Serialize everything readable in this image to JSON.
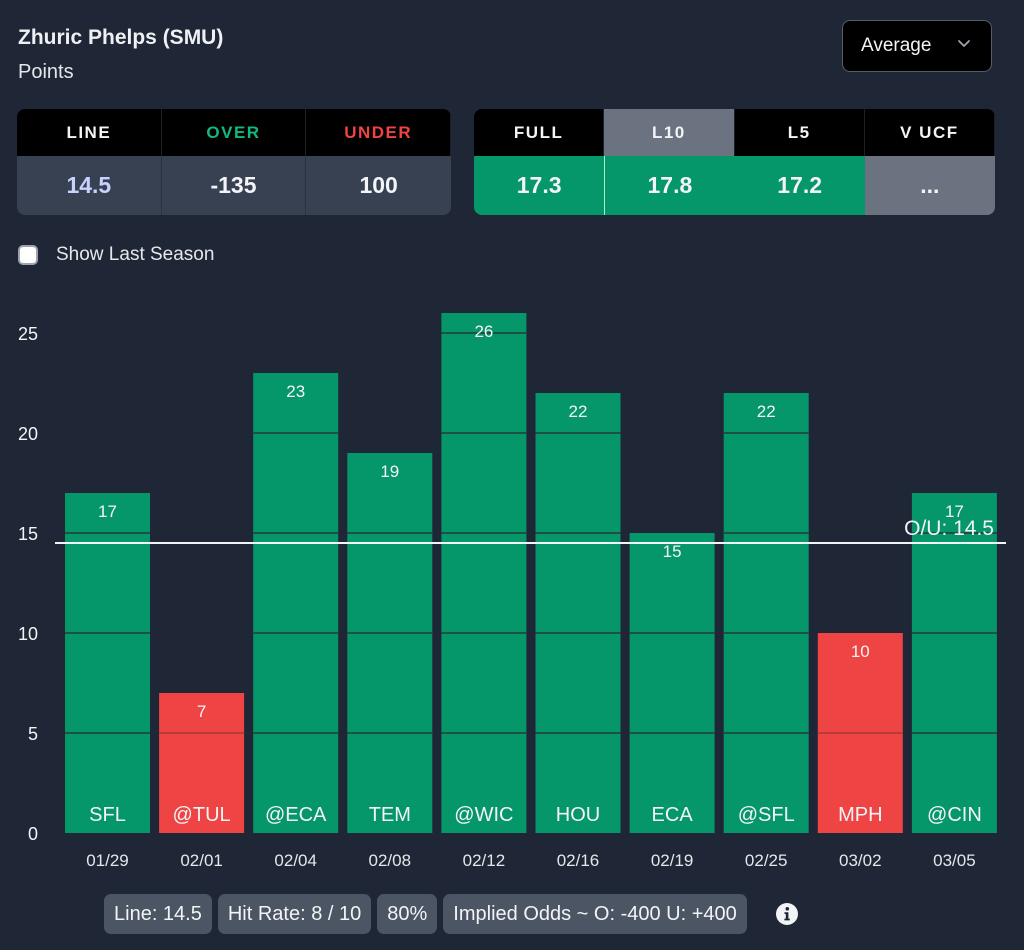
{
  "header": {
    "player": "Zhuric Phelps (SMU)",
    "stat": "Points",
    "dropdown": {
      "selected": "Average",
      "icon": "chevron-down-icon"
    }
  },
  "odds_table": {
    "headers": [
      "LINE",
      "OVER",
      "UNDER"
    ],
    "values": [
      "14.5",
      "-135",
      "100"
    ],
    "colors": {
      "over": "#10b981",
      "under": "#ef4444"
    }
  },
  "avg_table": {
    "headers": [
      "FULL",
      "L10",
      "L5",
      "V UCF"
    ],
    "values": [
      "17.3",
      "17.8",
      "17.2",
      "..."
    ],
    "active": "L10"
  },
  "show_last_season": {
    "label": "Show Last Season",
    "checked": false
  },
  "chart_data": {
    "type": "bar",
    "categories": [
      "01/29",
      "02/01",
      "02/04",
      "02/08",
      "02/12",
      "02/16",
      "02/19",
      "02/25",
      "03/02",
      "03/05"
    ],
    "opponents": [
      "SFL",
      "@TUL",
      "@ECA",
      "TEM",
      "@WIC",
      "HOU",
      "ECA",
      "@SFL",
      "MPH",
      "@CIN"
    ],
    "values": [
      17,
      7,
      23,
      19,
      26,
      22,
      15,
      22,
      10,
      17
    ],
    "yticks": [
      0,
      5,
      10,
      15,
      20,
      25
    ],
    "ylim": [
      0,
      25
    ],
    "line": {
      "value": 14.5,
      "label": "O/U: 14.5"
    },
    "colors": {
      "over": "#059669",
      "under": "#ef4444",
      "grid": "#1f4a3f"
    },
    "grid": true,
    "title": "",
    "xlabel": "",
    "ylabel": ""
  },
  "footer": {
    "line": "Line: 14.5",
    "hit_rate": "Hit Rate: 8 / 10",
    "percent": "80%",
    "implied_odds": "Implied Odds ~ O: -400 U: +400",
    "info_icon": "info-icon"
  }
}
